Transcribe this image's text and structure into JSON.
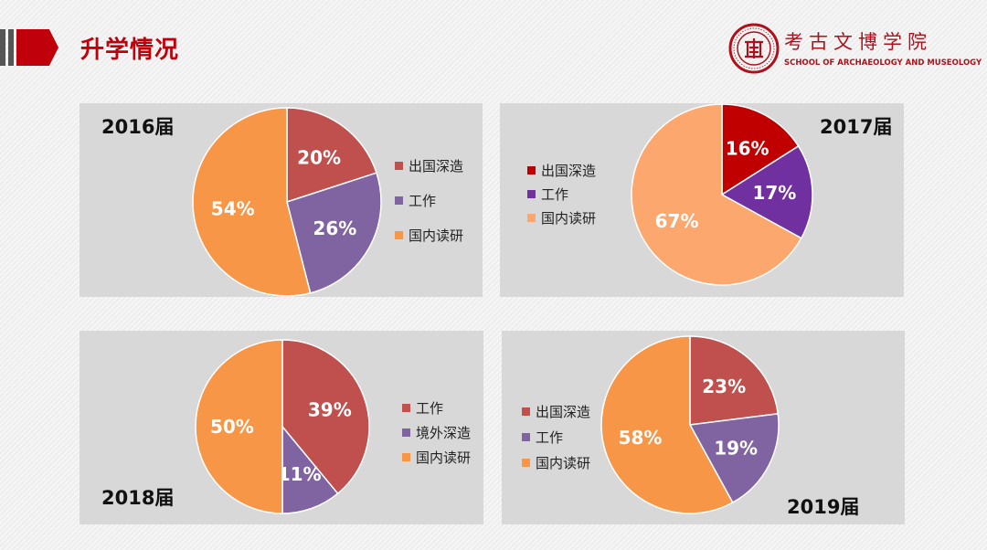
{
  "header": {
    "title": "升学情况",
    "logo_cn": "考古文博学院",
    "logo_en": "SCHOOL OF ARCHAEOLOGY AND MUSEOLOGY",
    "accent": "#c0000b"
  },
  "chart_data": [
    {
      "type": "pie",
      "title": "2016届",
      "series": [
        {
          "name": "出国深造",
          "value": 20,
          "label": "20%",
          "color": "#c0504d"
        },
        {
          "name": "工作",
          "value": 26,
          "label": "26%",
          "color": "#8064a2"
        },
        {
          "name": "国内读研",
          "value": 54,
          "label": "54%",
          "color": "#f79646"
        }
      ],
      "legend": [
        {
          "label": "出国深造",
          "color": "#c0504d"
        },
        {
          "label": "工作",
          "color": "#8064a2"
        },
        {
          "label": "国内读研",
          "color": "#f79646"
        }
      ]
    },
    {
      "type": "pie",
      "title": "2017届",
      "series": [
        {
          "name": "出国深造",
          "value": 16,
          "label": "16%",
          "color": "#c00000"
        },
        {
          "name": "工作",
          "value": 17,
          "label": "17%",
          "color": "#7030a0"
        },
        {
          "name": "国内读研",
          "value": 67,
          "label": "67%",
          "color": "#fca76e"
        }
      ],
      "legend": [
        {
          "label": "出国深造",
          "color": "#c00000"
        },
        {
          "label": "工作",
          "color": "#7030a0"
        },
        {
          "label": "国内读研",
          "color": "#fca76e"
        }
      ]
    },
    {
      "type": "pie",
      "title": "2018届",
      "series": [
        {
          "name": "工作",
          "value": 39,
          "label": "39%",
          "color": "#c0504d"
        },
        {
          "name": "境外深造",
          "value": 11,
          "label": "11%",
          "color": "#8064a2"
        },
        {
          "name": "国内读研",
          "value": 50,
          "label": "50%",
          "color": "#f79646"
        }
      ],
      "legend": [
        {
          "label": "工作",
          "color": "#c0504d"
        },
        {
          "label": "境外深造",
          "color": "#8064a2"
        },
        {
          "label": "国内读研",
          "color": "#f79646"
        }
      ]
    },
    {
      "type": "pie",
      "title": "2019届",
      "series": [
        {
          "name": "出国深造",
          "value": 23,
          "label": "23%",
          "color": "#c0504d"
        },
        {
          "name": "工作",
          "value": 19,
          "label": "19%",
          "color": "#8064a2"
        },
        {
          "name": "国内读研",
          "value": 58,
          "label": "58%",
          "color": "#f79646"
        }
      ],
      "legend": [
        {
          "label": "出国深造",
          "color": "#c0504d"
        },
        {
          "label": "工作",
          "color": "#8064a2"
        },
        {
          "label": "国内读研",
          "color": "#f79646"
        }
      ]
    }
  ]
}
